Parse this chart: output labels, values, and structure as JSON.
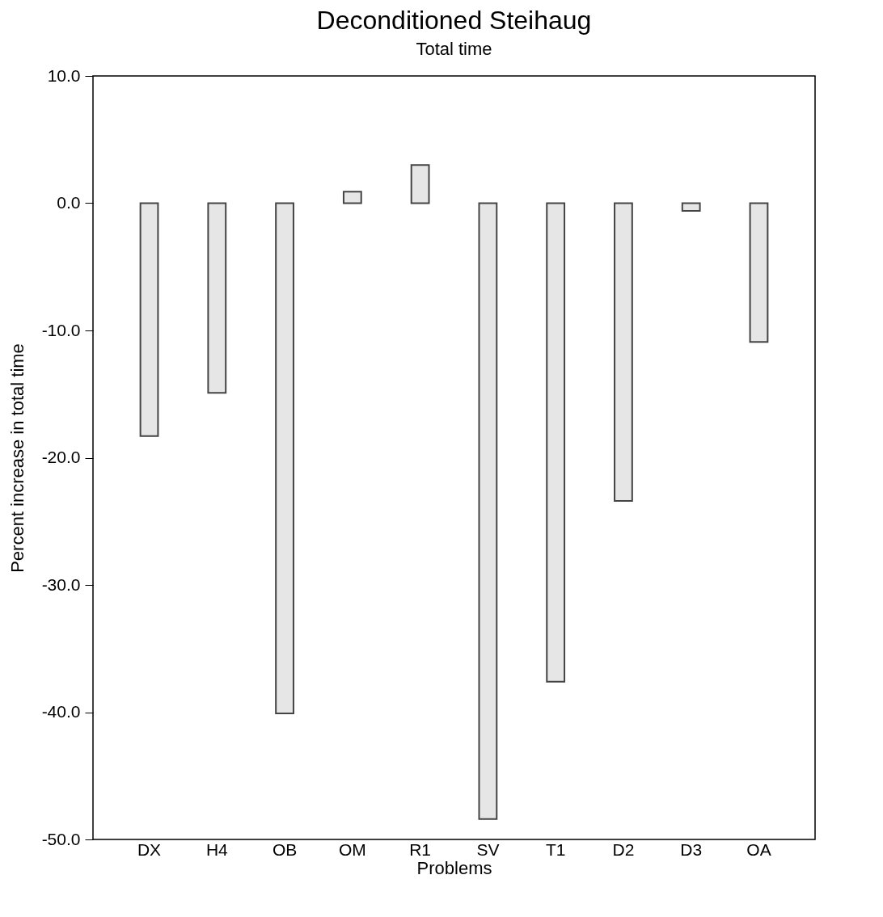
{
  "chart_data": {
    "type": "bar",
    "title": "Deconditioned Steihaug",
    "subtitle": "Total time",
    "xlabel": "Problems",
    "ylabel": "Percent increase in total time",
    "categories": [
      "DX",
      "H4",
      "OB",
      "OM",
      "R1",
      "SV",
      "T1",
      "D2",
      "D3",
      "OA"
    ],
    "values": [
      -18.3,
      -14.9,
      -40.1,
      0.9,
      3.0,
      -48.4,
      -37.6,
      -23.4,
      -0.6,
      -10.9
    ],
    "color": "#e6e6e6",
    "ylim": [
      -50,
      10
    ],
    "yticks": [
      {
        "value": 10,
        "label": "10.0"
      },
      {
        "value": 0,
        "label": "0.0"
      },
      {
        "value": -10,
        "label": "-10.0"
      },
      {
        "value": -20,
        "label": "-20.0"
      },
      {
        "value": -30,
        "label": "-30.0"
      },
      {
        "value": -40,
        "label": "-40.0"
      },
      {
        "value": -50,
        "label": "-50.0"
      }
    ],
    "grid": false
  }
}
